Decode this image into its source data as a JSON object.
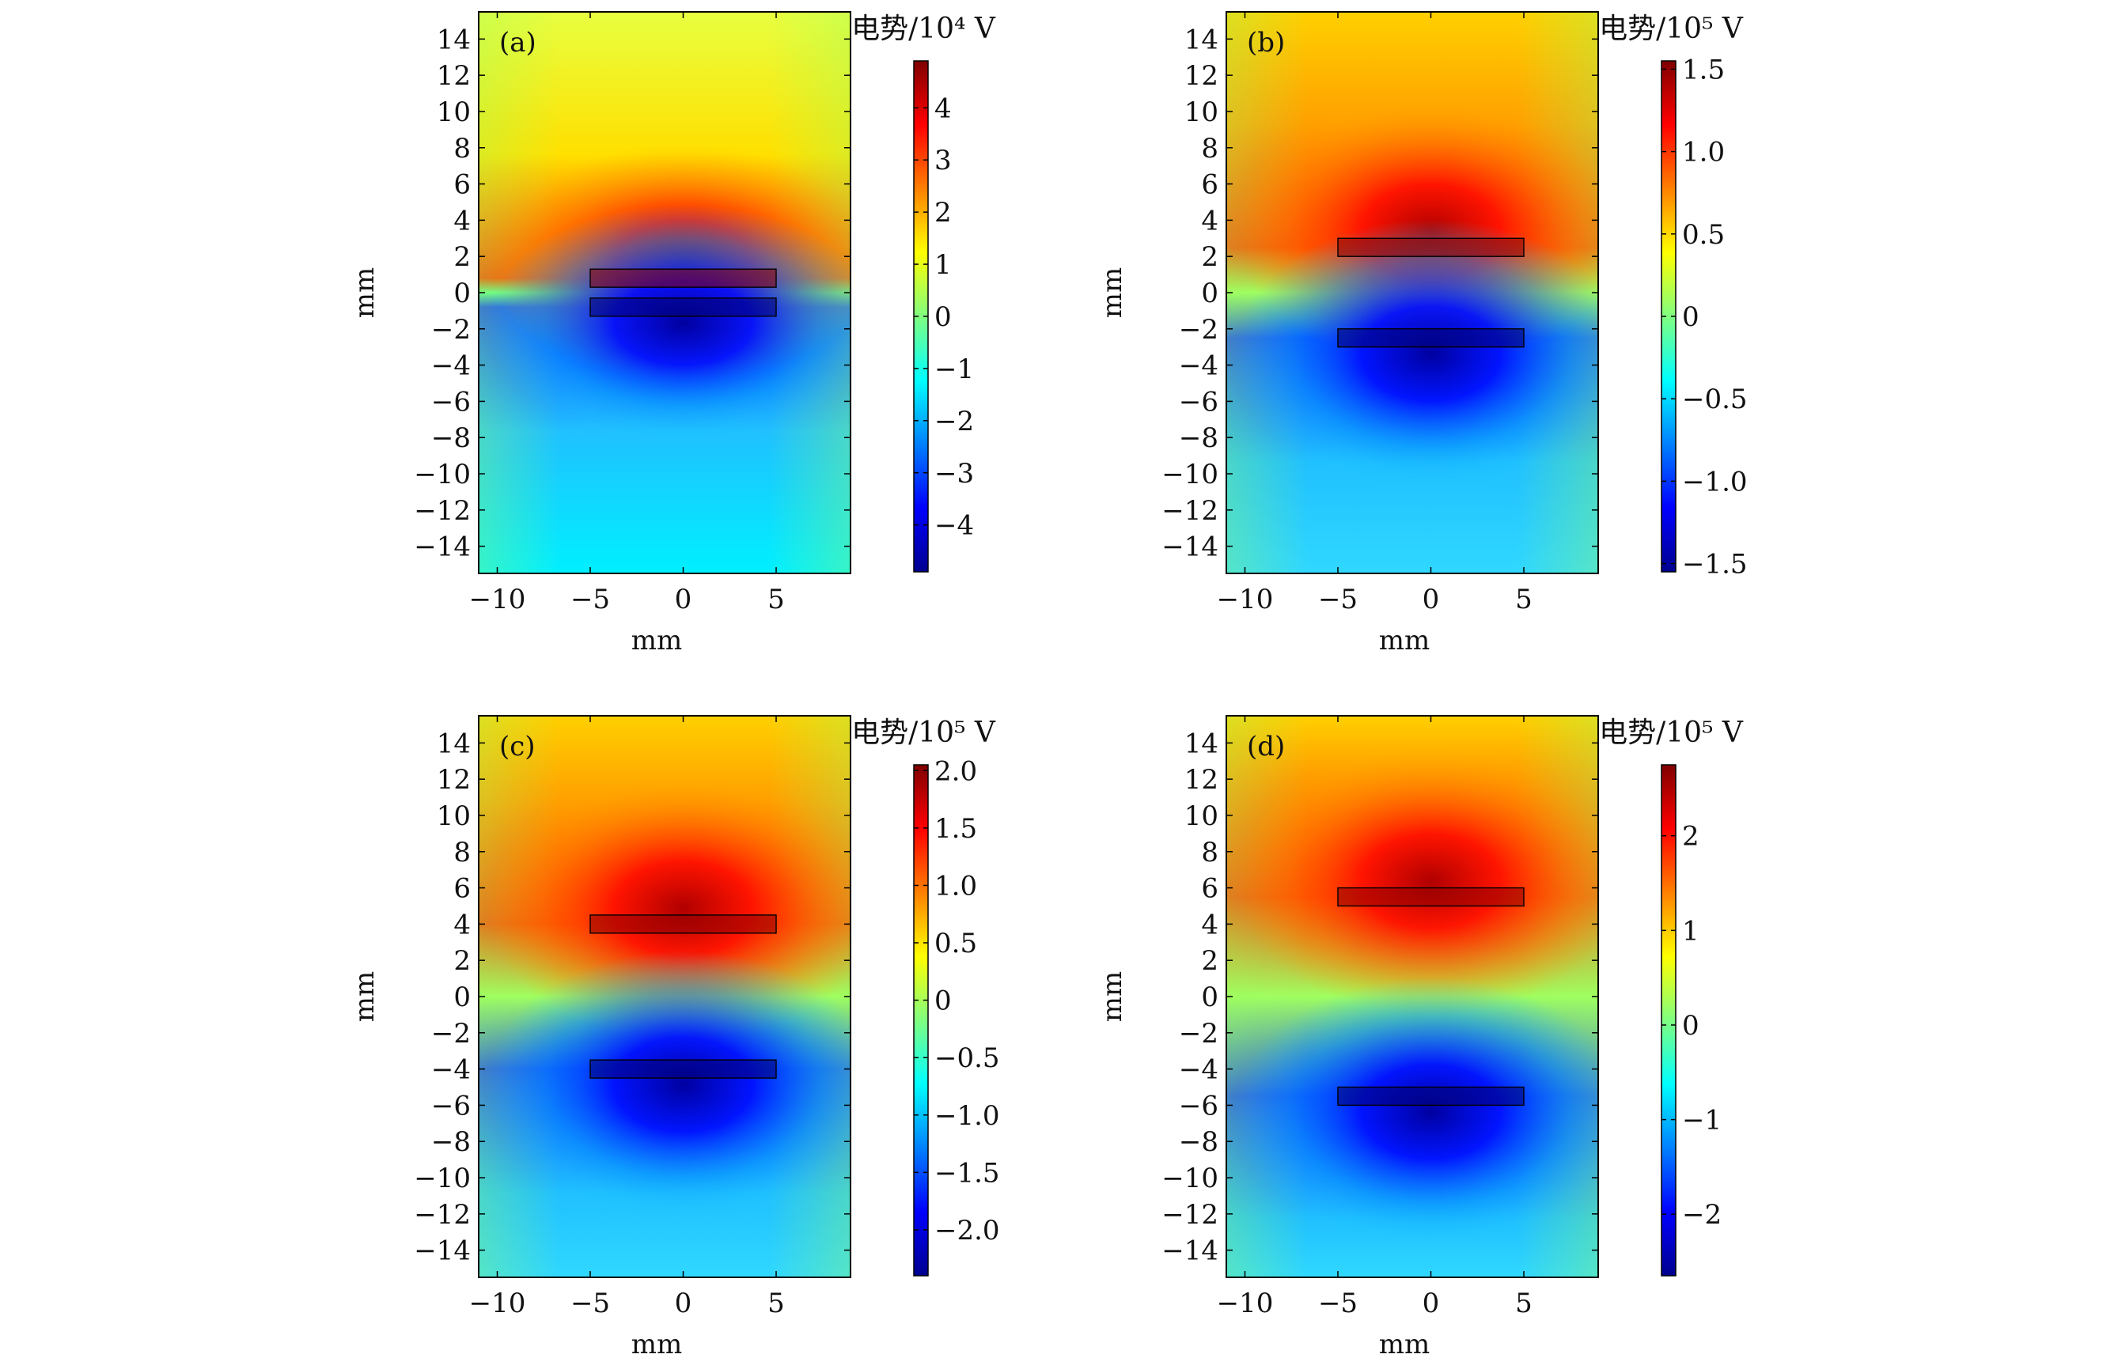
{
  "figure": {
    "colormap_stops": [
      "#00008f",
      "#0000ff",
      "#0080ff",
      "#00ffff",
      "#80ff80",
      "#ffff00",
      "#ff8000",
      "#ff0000",
      "#800000"
    ]
  },
  "chart_data": [
    {
      "type": "heatmap",
      "panel_label": "(a)",
      "title": "",
      "xlabel": "mm",
      "ylabel": "mm",
      "xlim": [
        -11,
        9
      ],
      "ylim": [
        -15.5,
        15.5
      ],
      "xticks": [
        -10,
        -5,
        0,
        5
      ],
      "xtick_labels": [
        "−10",
        "−5",
        "0",
        "5"
      ],
      "yticks": [
        14,
        12,
        10,
        8,
        6,
        4,
        2,
        0,
        -2,
        -4,
        -6,
        -8,
        -10,
        -12,
        -14
      ],
      "ytick_labels": [
        "14",
        "12",
        "10",
        "8",
        "6",
        "4",
        "2",
        "0",
        "−2",
        "−4",
        "−6",
        "−8",
        "−10",
        "−12",
        "−14"
      ],
      "colorbar": {
        "title": "电势/10⁴ V",
        "range": [
          -4.9,
          4.9
        ],
        "ticks": [
          4,
          3,
          2,
          1,
          0,
          -1,
          -2,
          -3,
          -4
        ],
        "tick_labels": [
          "4",
          "3",
          "2",
          "1",
          "0",
          "−1",
          "−2",
          "−3",
          "−4"
        ]
      },
      "electrodes": [
        {
          "name": "top",
          "x": [
            -5,
            5
          ],
          "y": [
            0.3,
            1.3
          ]
        },
        {
          "name": "bottom",
          "x": [
            -5,
            5
          ],
          "y": [
            -1.3,
            -0.3
          ]
        }
      ]
    },
    {
      "type": "heatmap",
      "panel_label": "(b)",
      "title": "",
      "xlabel": "mm",
      "ylabel": "mm",
      "xlim": [
        -11,
        9
      ],
      "ylim": [
        -15.5,
        15.5
      ],
      "xticks": [
        -10,
        -5,
        0,
        5
      ],
      "xtick_labels": [
        "−10",
        "−5",
        "0",
        "5"
      ],
      "yticks": [
        14,
        12,
        10,
        8,
        6,
        4,
        2,
        0,
        -2,
        -4,
        -6,
        -8,
        -10,
        -12,
        -14
      ],
      "ytick_labels": [
        "14",
        "12",
        "10",
        "8",
        "6",
        "4",
        "2",
        "0",
        "−2",
        "−4",
        "−6",
        "−8",
        "−10",
        "−12",
        "−14"
      ],
      "colorbar": {
        "title": "电势/10⁵ V",
        "range": [
          -1.55,
          1.55
        ],
        "ticks": [
          1.5,
          1.0,
          0.5,
          0,
          -0.5,
          -1.0,
          -1.5
        ],
        "tick_labels": [
          "1.5",
          "1.0",
          "0.5",
          "0",
          "−0.5",
          "−1.0",
          "−1.5"
        ]
      },
      "electrodes": [
        {
          "name": "top",
          "x": [
            -5,
            5
          ],
          "y": [
            2.0,
            3.0
          ]
        },
        {
          "name": "bottom",
          "x": [
            -5,
            5
          ],
          "y": [
            -3.0,
            -2.0
          ]
        }
      ]
    },
    {
      "type": "heatmap",
      "panel_label": "(c)",
      "title": "",
      "xlabel": "mm",
      "ylabel": "mm",
      "xlim": [
        -11,
        9
      ],
      "ylim": [
        -15.5,
        15.5
      ],
      "xticks": [
        -10,
        -5,
        0,
        5
      ],
      "xtick_labels": [
        "−10",
        "−5",
        "0",
        "5"
      ],
      "yticks": [
        14,
        12,
        10,
        8,
        6,
        4,
        2,
        0,
        -2,
        -4,
        -6,
        -8,
        -10,
        -12,
        -14
      ],
      "ytick_labels": [
        "14",
        "12",
        "10",
        "8",
        "6",
        "4",
        "2",
        "0",
        "−2",
        "−4",
        "−6",
        "−8",
        "−10",
        "−12",
        "−14"
      ],
      "colorbar": {
        "title": "电势/10⁵ V",
        "range": [
          -2.4,
          2.05
        ],
        "ticks": [
          2.0,
          1.5,
          1.0,
          0.5,
          0,
          -0.5,
          -1.0,
          -1.5,
          -2.0
        ],
        "tick_labels": [
          "2.0",
          "1.5",
          "1.0",
          "0.5",
          "0",
          "−0.5",
          "−1.0",
          "−1.5",
          "−2.0"
        ]
      },
      "electrodes": [
        {
          "name": "top",
          "x": [
            -5,
            5
          ],
          "y": [
            3.5,
            4.5
          ]
        },
        {
          "name": "bottom",
          "x": [
            -5,
            5
          ],
          "y": [
            -4.5,
            -3.5
          ]
        }
      ]
    },
    {
      "type": "heatmap",
      "panel_label": "(d)",
      "title": "",
      "xlabel": "mm",
      "ylabel": "mm",
      "xlim": [
        -11,
        9
      ],
      "ylim": [
        -15.5,
        15.5
      ],
      "xticks": [
        -10,
        -5,
        0,
        5
      ],
      "xtick_labels": [
        "−10",
        "−5",
        "0",
        "5"
      ],
      "yticks": [
        14,
        12,
        10,
        8,
        6,
        4,
        2,
        0,
        -2,
        -4,
        -6,
        -8,
        -10,
        -12,
        -14
      ],
      "ytick_labels": [
        "14",
        "12",
        "10",
        "8",
        "6",
        "4",
        "2",
        "0",
        "−2",
        "−4",
        "−6",
        "−8",
        "−10",
        "−12",
        "−14"
      ],
      "colorbar": {
        "title": "电势/10⁵ V",
        "range": [
          -2.65,
          2.75
        ],
        "ticks": [
          2,
          1,
          0,
          -1,
          -2
        ],
        "tick_labels": [
          "2",
          "1",
          "0",
          "−1",
          "−2"
        ]
      },
      "electrodes": [
        {
          "name": "top",
          "x": [
            -5,
            5
          ],
          "y": [
            5.0,
            6.0
          ]
        },
        {
          "name": "bottom",
          "x": [
            -5,
            5
          ],
          "y": [
            -6.0,
            -5.0
          ]
        }
      ]
    }
  ]
}
